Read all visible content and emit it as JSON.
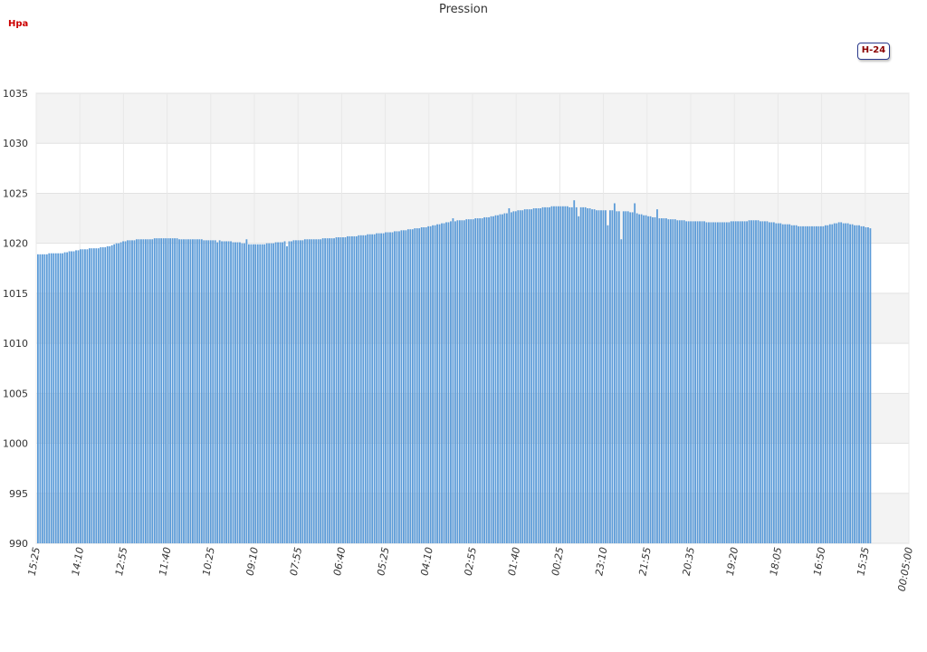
{
  "chart_data": {
    "type": "bar",
    "title": "Pression",
    "unit_label": "Hpa",
    "range_button": "H-24",
    "xlabel": "",
    "ylabel": "",
    "ylim": [
      990,
      1035
    ],
    "yticks": [
      990,
      995,
      1000,
      1005,
      1010,
      1015,
      1020,
      1025,
      1030,
      1035
    ],
    "xticks": [
      "15:25",
      "14:10",
      "12:55",
      "11:40",
      "10:25",
      "09:10",
      "07:55",
      "06:40",
      "05:25",
      "04:10",
      "02:55",
      "01:40",
      "00:25",
      "23:10",
      "21:55",
      "20:35",
      "19:20",
      "18:05",
      "16:50",
      "15:35",
      "00:05:00"
    ],
    "grid": true,
    "bar_color": "#5b9bd8",
    "band_color": "#f3f3f3",
    "knots": [
      [
        0,
        1018.9
      ],
      [
        10,
        1019.0
      ],
      [
        20,
        1019.4
      ],
      [
        30,
        1019.6
      ],
      [
        40,
        1020.3
      ],
      [
        55,
        1020.5
      ],
      [
        70,
        1020.4
      ],
      [
        85,
        1020.2
      ],
      [
        95,
        1019.9
      ],
      [
        100,
        1019.9
      ],
      [
        115,
        1020.3
      ],
      [
        130,
        1020.5
      ],
      [
        145,
        1020.8
      ],
      [
        160,
        1021.2
      ],
      [
        175,
        1021.7
      ],
      [
        185,
        1022.2
      ],
      [
        200,
        1022.6
      ],
      [
        215,
        1023.3
      ],
      [
        230,
        1023.7
      ],
      [
        243,
        1023.6
      ],
      [
        250,
        1023.3
      ],
      [
        262,
        1023.2
      ],
      [
        275,
        1022.6
      ],
      [
        290,
        1022.2
      ],
      [
        305,
        1022.1
      ],
      [
        320,
        1022.3
      ],
      [
        330,
        1022.0
      ],
      [
        340,
        1021.7
      ],
      [
        350,
        1021.7
      ],
      [
        357,
        1022.1
      ],
      [
        365,
        1021.8
      ],
      [
        371,
        1021.5
      ]
    ],
    "spikes": [
      [
        80,
        1020.1
      ],
      [
        93,
        1020.4
      ],
      [
        111,
        1019.7
      ],
      [
        185,
        1022.5
      ],
      [
        210,
        1023.5
      ],
      [
        239,
        1024.3
      ],
      [
        241,
        1022.7
      ],
      [
        254,
        1021.8
      ],
      [
        257,
        1024.0
      ],
      [
        260,
        1020.4
      ],
      [
        266,
        1024.0
      ],
      [
        276,
        1023.4
      ]
    ],
    "bar_count": 372
  }
}
